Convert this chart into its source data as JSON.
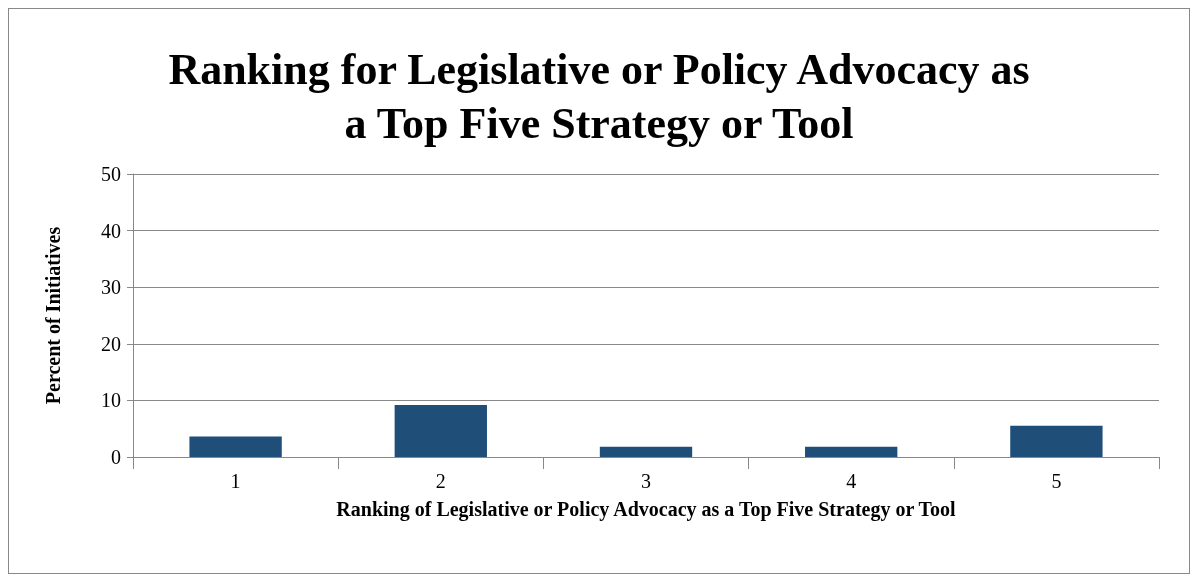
{
  "chart_data": {
    "type": "bar",
    "title": "Ranking for Legislative or Policy Advocacy as\na Top Five Strategy or Tool",
    "xlabel": "Ranking of Legislative or Policy Advocacy as a Top Five Strategy or Tool",
    "ylabel": "Percent of Initiatives",
    "categories": [
      "1",
      "2",
      "3",
      "4",
      "5"
    ],
    "values": [
      3.6,
      9.2,
      1.8,
      1.8,
      5.5
    ],
    "color": "#1f4e79",
    "ylim": [
      0,
      50
    ],
    "yticks": [
      0,
      10,
      20,
      30,
      40,
      50
    ],
    "grid": "y"
  }
}
